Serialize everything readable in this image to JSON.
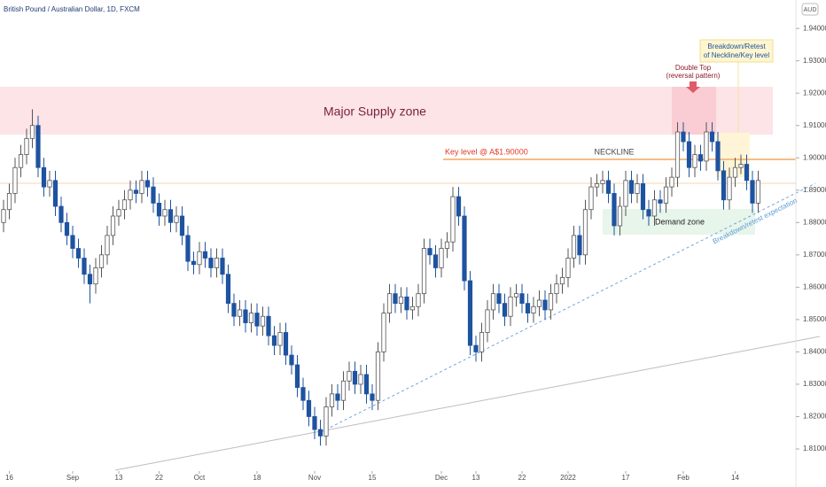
{
  "chart_data": {
    "type": "candlestick",
    "title": "British Pound / Australian Dollar, 1D, FXCM",
    "y_unit": "AUD",
    "up_color": "#ffffff",
    "up_edge": "#555555",
    "down_color": "#1e53a0",
    "open": [
      1.88,
      1.884,
      1.889,
      1.897,
      1.901,
      1.906,
      1.91,
      1.897,
      1.891,
      1.893,
      1.885,
      1.88,
      1.876,
      1.872,
      1.869,
      1.864,
      1.861,
      1.866,
      1.87,
      1.876,
      1.882,
      1.884,
      1.887,
      1.89,
      1.889,
      1.893,
      1.891,
      1.886,
      1.882,
      1.884,
      1.88,
      1.882,
      1.876,
      1.868,
      1.867,
      1.871,
      1.869,
      1.866,
      1.869,
      1.864,
      1.855,
      1.851,
      1.853,
      1.849,
      1.852,
      1.848,
      1.851,
      1.845,
      1.842,
      1.846,
      1.839,
      1.836,
      1.829,
      1.825,
      1.82,
      1.816,
      1.814,
      1.823,
      1.827,
      1.825,
      1.831,
      1.834,
      1.83,
      1.833,
      1.827,
      1.825,
      1.84,
      1.852,
      1.858,
      1.855,
      1.857,
      1.853,
      1.854,
      1.858,
      1.872,
      1.87,
      1.866,
      1.872,
      1.874,
      1.888,
      1.882,
      1.862,
      1.842,
      1.84,
      1.846,
      1.853,
      1.858,
      1.855,
      1.851,
      1.857,
      1.858,
      1.855,
      1.852,
      1.854,
      1.856,
      1.853,
      1.858,
      1.861,
      1.863,
      1.869,
      1.876,
      1.87,
      1.884,
      1.891,
      1.892,
      1.893,
      1.889,
      1.879,
      1.885,
      1.893,
      1.889,
      1.892,
      1.884,
      1.882,
      1.887,
      1.886,
      1.891,
      1.894,
      1.908,
      1.905,
      1.897,
      1.901,
      1.899,
      1.908,
      1.905,
      1.896,
      1.887,
      1.894,
      1.897,
      1.898,
      1.893,
      1.886
    ],
    "high": [
      1.887,
      1.892,
      1.9,
      1.904,
      1.909,
      1.915,
      1.913,
      1.9,
      1.896,
      1.896,
      1.888,
      1.883,
      1.879,
      1.875,
      1.872,
      1.867,
      1.869,
      1.873,
      1.879,
      1.885,
      1.887,
      1.89,
      1.893,
      1.893,
      1.896,
      1.896,
      1.894,
      1.889,
      1.887,
      1.887,
      1.885,
      1.885,
      1.879,
      1.871,
      1.874,
      1.874,
      1.872,
      1.872,
      1.872,
      1.867,
      1.858,
      1.856,
      1.856,
      1.855,
      1.855,
      1.854,
      1.854,
      1.848,
      1.849,
      1.849,
      1.842,
      1.839,
      1.832,
      1.828,
      1.823,
      1.819,
      1.826,
      1.83,
      1.83,
      1.834,
      1.837,
      1.837,
      1.836,
      1.836,
      1.83,
      1.843,
      1.855,
      1.861,
      1.861,
      1.86,
      1.86,
      1.857,
      1.861,
      1.875,
      1.875,
      1.873,
      1.875,
      1.877,
      1.891,
      1.891,
      1.885,
      1.865,
      1.845,
      1.849,
      1.856,
      1.861,
      1.861,
      1.858,
      1.86,
      1.861,
      1.861,
      1.858,
      1.857,
      1.859,
      1.859,
      1.861,
      1.864,
      1.866,
      1.872,
      1.879,
      1.879,
      1.887,
      1.894,
      1.895,
      1.896,
      1.896,
      1.892,
      1.888,
      1.896,
      1.896,
      1.895,
      1.895,
      1.887,
      1.89,
      1.89,
      1.894,
      1.897,
      1.911,
      1.911,
      1.908,
      1.904,
      1.904,
      1.911,
      1.911,
      1.908,
      1.899,
      1.897,
      1.9,
      1.901,
      1.901,
      1.896,
      1.896
    ],
    "low": [
      1.877,
      1.881,
      1.886,
      1.894,
      1.898,
      1.903,
      1.894,
      1.888,
      1.888,
      1.882,
      1.877,
      1.873,
      1.869,
      1.866,
      1.861,
      1.855,
      1.858,
      1.863,
      1.867,
      1.873,
      1.879,
      1.881,
      1.884,
      1.886,
      1.886,
      1.888,
      1.883,
      1.879,
      1.879,
      1.877,
      1.877,
      1.873,
      1.865,
      1.864,
      1.864,
      1.866,
      1.863,
      1.863,
      1.861,
      1.852,
      1.848,
      1.848,
      1.846,
      1.846,
      1.845,
      1.845,
      1.842,
      1.839,
      1.839,
      1.836,
      1.833,
      1.826,
      1.822,
      1.817,
      1.813,
      1.811,
      1.811,
      1.82,
      1.822,
      1.822,
      1.828,
      1.827,
      1.827,
      1.824,
      1.822,
      1.822,
      1.837,
      1.849,
      1.852,
      1.852,
      1.85,
      1.85,
      1.851,
      1.855,
      1.867,
      1.863,
      1.863,
      1.869,
      1.871,
      1.879,
      1.859,
      1.839,
      1.837,
      1.837,
      1.843,
      1.85,
      1.852,
      1.848,
      1.848,
      1.854,
      1.852,
      1.849,
      1.849,
      1.851,
      1.85,
      1.85,
      1.855,
      1.858,
      1.86,
      1.866,
      1.867,
      1.867,
      1.881,
      1.888,
      1.889,
      1.886,
      1.876,
      1.876,
      1.882,
      1.886,
      1.886,
      1.881,
      1.879,
      1.879,
      1.883,
      1.883,
      1.888,
      1.891,
      1.902,
      1.894,
      1.894,
      1.896,
      1.896,
      1.902,
      1.893,
      1.884,
      1.884,
      1.891,
      1.895,
      1.89,
      1.883,
      1.883
    ],
    "close": [
      1.884,
      1.889,
      1.897,
      1.901,
      1.906,
      1.91,
      1.897,
      1.891,
      1.893,
      1.885,
      1.88,
      1.876,
      1.872,
      1.869,
      1.864,
      1.861,
      1.866,
      1.87,
      1.876,
      1.882,
      1.884,
      1.887,
      1.89,
      1.889,
      1.893,
      1.891,
      1.886,
      1.882,
      1.884,
      1.88,
      1.882,
      1.876,
      1.868,
      1.867,
      1.871,
      1.869,
      1.866,
      1.869,
      1.864,
      1.855,
      1.851,
      1.853,
      1.849,
      1.852,
      1.848,
      1.851,
      1.845,
      1.842,
      1.846,
      1.839,
      1.836,
      1.829,
      1.825,
      1.82,
      1.816,
      1.814,
      1.823,
      1.827,
      1.825,
      1.831,
      1.834,
      1.83,
      1.833,
      1.827,
      1.825,
      1.84,
      1.852,
      1.858,
      1.855,
      1.857,
      1.853,
      1.854,
      1.858,
      1.872,
      1.87,
      1.866,
      1.872,
      1.874,
      1.888,
      1.882,
      1.862,
      1.842,
      1.84,
      1.846,
      1.853,
      1.858,
      1.855,
      1.851,
      1.857,
      1.858,
      1.855,
      1.852,
      1.854,
      1.856,
      1.853,
      1.858,
      1.861,
      1.863,
      1.869,
      1.876,
      1.87,
      1.884,
      1.891,
      1.892,
      1.893,
      1.889,
      1.879,
      1.885,
      1.893,
      1.889,
      1.892,
      1.884,
      1.882,
      1.887,
      1.886,
      1.891,
      1.894,
      1.908,
      1.905,
      1.897,
      1.901,
      1.899,
      1.908,
      1.905,
      1.896,
      1.887,
      1.894,
      1.897,
      1.898,
      1.893,
      1.886,
      1.893
    ],
    "ylim": [
      1.8037,
      1.9488
    ],
    "yticks": [
      {
        "value": 1.94,
        "label": "1.94000"
      },
      {
        "value": 1.93,
        "label": "1.93000"
      },
      {
        "value": 1.92,
        "label": "1.92000"
      },
      {
        "value": 1.91,
        "label": "1.91000"
      },
      {
        "value": 1.9,
        "label": "1.90000"
      },
      {
        "value": 1.89,
        "label": "1.89000"
      },
      {
        "value": 1.88,
        "label": "1.88000"
      },
      {
        "value": 1.87,
        "label": "1.87000"
      },
      {
        "value": 1.86,
        "label": "1.86000"
      },
      {
        "value": 1.85,
        "label": "1.85000"
      },
      {
        "value": 1.84,
        "label": "1.84000"
      },
      {
        "value": 1.83,
        "label": "1.83000"
      },
      {
        "value": 1.82,
        "label": "1.82000"
      },
      {
        "value": 1.81,
        "label": "1.81000"
      }
    ],
    "xlim": [
      -0.615,
      137.54
    ],
    "xticks": [
      {
        "value": 1,
        "label": "16"
      },
      {
        "value": 12,
        "label": "Sep"
      },
      {
        "value": 20,
        "label": "13"
      },
      {
        "value": 27,
        "label": "22"
      },
      {
        "value": 34,
        "label": "Oct"
      },
      {
        "value": 44,
        "label": "18"
      },
      {
        "value": 54,
        "label": "Nov"
      },
      {
        "value": 64,
        "label": "15"
      },
      {
        "value": 76,
        "label": "Dec"
      },
      {
        "value": 82,
        "label": "13"
      },
      {
        "value": 90,
        "label": "22"
      },
      {
        "value": 98,
        "label": "2022"
      },
      {
        "value": 108,
        "label": "17"
      },
      {
        "value": 118,
        "label": "Feb"
      },
      {
        "value": 127,
        "label": "14"
      }
    ],
    "annotations": {
      "supply_zone": "Major Supply zone",
      "key_level": "Key level @ A$1.90000",
      "neckline": "NECKLINE",
      "double_top": [
        "Double Top",
        "(reversal pattern)"
      ],
      "retest": [
        "Breakdown/Retest",
        "of Neckline/Key level"
      ],
      "demand_zone": "Demand zone",
      "expectation": "Breakdown/retest expectation"
    }
  }
}
